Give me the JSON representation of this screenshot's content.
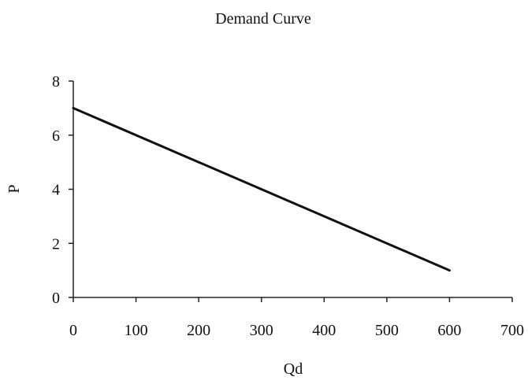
{
  "chart_data": {
    "type": "line",
    "title": "Demand Curve",
    "xlabel": "Qd",
    "ylabel": "P",
    "xlim": [
      0,
      700
    ],
    "ylim": [
      0,
      8
    ],
    "x_ticks": [
      "0",
      "100",
      "200",
      "300",
      "400",
      "500",
      "600",
      "700"
    ],
    "y_ticks": [
      "0",
      "2",
      "4",
      "6",
      "8"
    ],
    "grid": false,
    "legend": "none",
    "series": [
      {
        "x": [
          0,
          600
        ],
        "y": [
          7,
          1
        ],
        "color": "#111111"
      }
    ]
  }
}
